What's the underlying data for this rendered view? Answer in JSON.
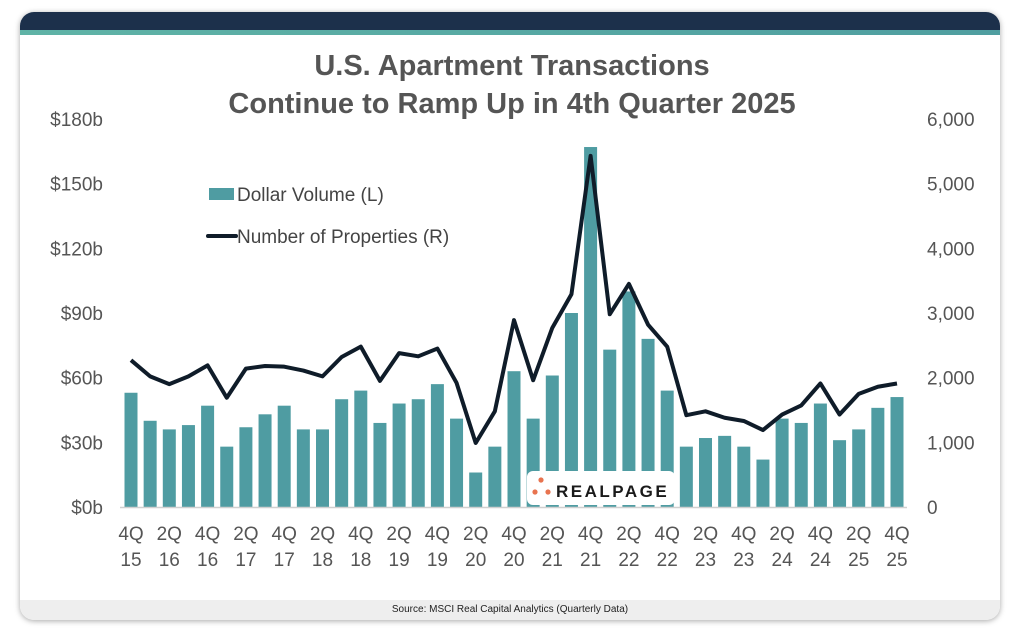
{
  "footer": {
    "source": "Source: MSCI Real Capital Analytics (Quarterly Data)"
  },
  "logo": {
    "text": "REALPAGE"
  },
  "colors": {
    "bar": "#4f9ca2",
    "line": "#0f1c29",
    "header": "#1c304b",
    "stripe": "#5fb3a6",
    "logo_dots": "#e8734f"
  },
  "chart_data": {
    "type": "bar+line",
    "title": [
      "U.S. Apartment Transactions",
      "Continue to Ramp Up in 4th Quarter 2025"
    ],
    "left_axis": {
      "ylim": [
        0,
        180
      ],
      "ticks": [
        "$0b",
        "$30b",
        "$60b",
        "$90b",
        "$120b",
        "$150b",
        "$180b"
      ]
    },
    "right_axis": {
      "ylim": [
        0,
        6000
      ],
      "ticks": [
        "0",
        "1,000",
        "2,000",
        "3,000",
        "4,000",
        "5,000",
        "6,000"
      ]
    },
    "x_tick_labels": [
      [
        "4Q",
        "15"
      ],
      [
        "2Q",
        "16"
      ],
      [
        "4Q",
        "16"
      ],
      [
        "2Q",
        "17"
      ],
      [
        "4Q",
        "17"
      ],
      [
        "2Q",
        "18"
      ],
      [
        "4Q",
        "18"
      ],
      [
        "2Q",
        "19"
      ],
      [
        "4Q",
        "19"
      ],
      [
        "2Q",
        "20"
      ],
      [
        "4Q",
        "20"
      ],
      [
        "2Q",
        "21"
      ],
      [
        "4Q",
        "21"
      ],
      [
        "2Q",
        "22"
      ],
      [
        "4Q",
        "22"
      ],
      [
        "2Q",
        "23"
      ],
      [
        "4Q",
        "23"
      ],
      [
        "2Q",
        "24"
      ],
      [
        "4Q",
        "24"
      ],
      [
        "2Q",
        "25"
      ],
      [
        "4Q",
        "25"
      ]
    ],
    "categories": [
      "4Q15",
      "1Q16",
      "2Q16",
      "3Q16",
      "4Q16",
      "1Q17",
      "2Q17",
      "3Q17",
      "4Q17",
      "1Q18",
      "2Q18",
      "3Q18",
      "4Q18",
      "1Q19",
      "2Q19",
      "3Q19",
      "4Q19",
      "1Q20",
      "2Q20",
      "3Q20",
      "4Q20",
      "1Q21",
      "2Q21",
      "3Q21",
      "4Q21",
      "1Q22",
      "2Q22",
      "3Q22",
      "4Q22",
      "1Q23",
      "2Q23",
      "3Q23",
      "4Q23",
      "1Q24",
      "2Q24",
      "3Q24",
      "4Q24",
      "1Q25",
      "2Q25",
      "3Q25",
      "4Q25"
    ],
    "legend_position": "top-left",
    "grid": false,
    "series": [
      {
        "name": "Dollar Volume (L)",
        "type": "bar",
        "axis": "left",
        "values": [
          53,
          40,
          36,
          38,
          47,
          28,
          37,
          43,
          47,
          36,
          36,
          50,
          54,
          39,
          48,
          50,
          57,
          41,
          16,
          28,
          63,
          41,
          61,
          90,
          167,
          73,
          100,
          78,
          54,
          28,
          32,
          33,
          28,
          22,
          41,
          39,
          48,
          31,
          36,
          46,
          51
        ]
      },
      {
        "name": "Number of Properties (R)",
        "type": "line",
        "axis": "right",
        "values": [
          2270,
          2020,
          1900,
          2020,
          2190,
          1690,
          2140,
          2180,
          2170,
          2110,
          2020,
          2320,
          2480,
          1950,
          2380,
          2330,
          2450,
          1920,
          990,
          1480,
          2890,
          1960,
          2770,
          3290,
          5430,
          2980,
          3450,
          2820,
          2480,
          1420,
          1480,
          1380,
          1330,
          1190,
          1430,
          1570,
          1910,
          1430,
          1750,
          1860,
          1910
        ]
      }
    ]
  }
}
